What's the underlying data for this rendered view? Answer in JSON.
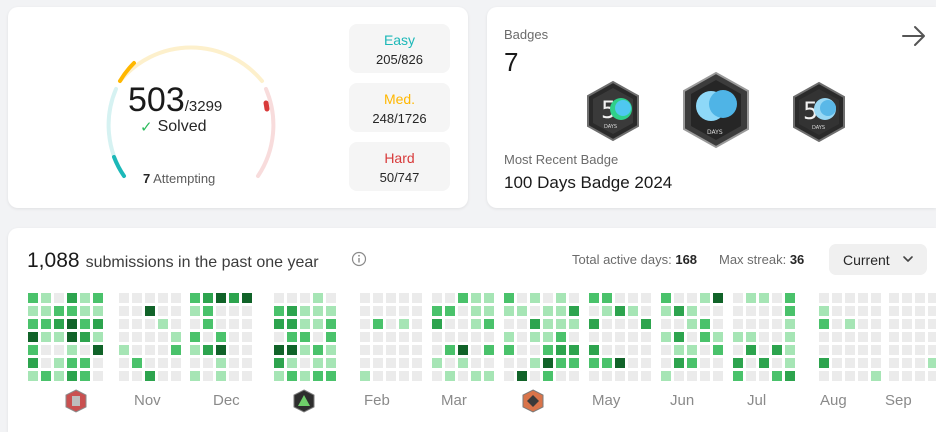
{
  "progress": {
    "solved": "503",
    "total": "/3299",
    "solved_label": "Solved",
    "attempting_count": "7",
    "attempting_label": "Attempting",
    "difficulties": [
      {
        "label": "Easy",
        "value": "205/826",
        "color": "#1cb8b8"
      },
      {
        "label": "Med.",
        "value": "248/1726",
        "color": "#ffb700"
      },
      {
        "label": "Hard",
        "value": "50/747",
        "color": "#d83a3a"
      }
    ]
  },
  "badges": {
    "title": "Badges",
    "count": "7",
    "recent_label": "Most Recent Badge",
    "recent_name": "100 Days Badge 2024",
    "items": [
      {
        "name": "50-days-badge",
        "text": "DAYS"
      },
      {
        "name": "100-days-badge",
        "text": "DAYS"
      },
      {
        "name": "50-days-badge-2",
        "text": "DAYS"
      }
    ]
  },
  "calendar": {
    "submissions_count": "1,088",
    "submissions_text": "submissions in the past one year",
    "active_days_label": "Total active days:",
    "active_days_value": "168",
    "max_streak_label": "Max streak:",
    "max_streak_value": "36",
    "period_select": "Current",
    "months": [
      "",
      "Nov",
      "Dec",
      "",
      "Feb",
      "Mar",
      "",
      "May",
      "Jun",
      "Jul",
      "Aug",
      "Sep"
    ],
    "colors": {
      "empty": "#ebebeb",
      "level1": "#a6e5b5",
      "level2": "#4ac26b",
      "level3": "#2da44e",
      "level4": "#116329"
    }
  }
}
